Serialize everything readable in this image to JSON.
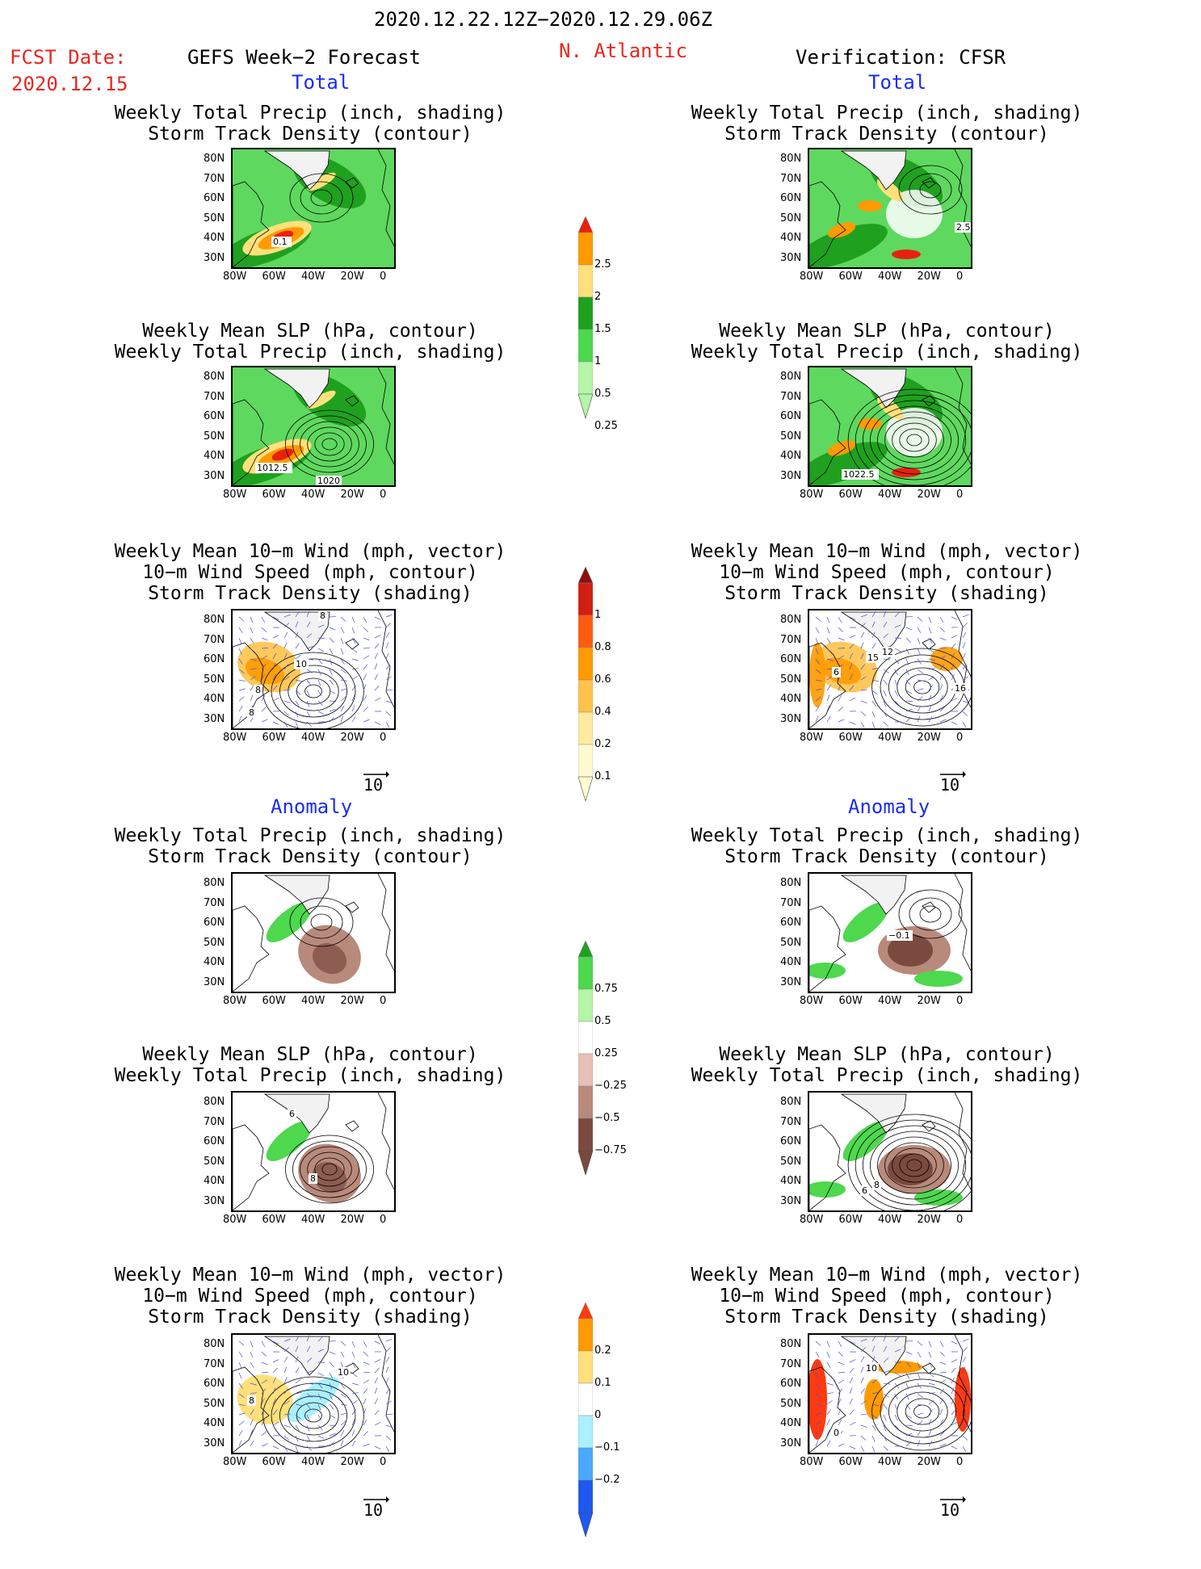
{
  "header": {
    "date_range": "2020.12.22.12Z−2020.12.29.06Z",
    "fcst_label": "FCST Date:",
    "fcst_date": "2020.12.15",
    "left_title": "GEFS Week−2 Forecast",
    "region": "N. Atlantic",
    "right_title": "Verification: CFSR"
  },
  "sections": {
    "total": "Total",
    "anomaly": "Anomaly"
  },
  "panel_titles": {
    "precip_track": [
      "Weekly Total Precip (inch, shading)",
      "Storm Track Density (contour)"
    ],
    "slp_precip": [
      "Weekly Mean SLP (hPa, contour)",
      "Weekly Total Precip (inch, shading)"
    ],
    "wind_track": [
      "Weekly Mean 10−m Wind (mph, vector)",
      "10−m Wind Speed (mph, contour)",
      "Storm Track Density (shading)"
    ]
  },
  "axes": {
    "lat_labels": [
      "80N",
      "70N",
      "60N",
      "50N",
      "40N",
      "30N"
    ],
    "lon_labels": [
      "80W",
      "60W",
      "40W",
      "20W",
      "0"
    ]
  },
  "contour_labels": {
    "fcst_total_precip": "0.1",
    "fcst_total_slp": [
      "1012.5",
      "1020"
    ],
    "fcst_total_wind": [
      "10",
      "8",
      "8",
      "8"
    ],
    "ver_total_precip": "2.5",
    "ver_total_slp": "1022.5",
    "ver_total_wind": [
      "12",
      "15",
      "6",
      "16"
    ],
    "fcst_anom_slp": [
      "6",
      "8"
    ],
    "ver_anom_precip": "−0.1",
    "ver_anom_slp": [
      "6",
      "8"
    ],
    "fcst_anom_wind": [
      "10",
      "8"
    ],
    "ver_anom_wind": [
      "10",
      "0"
    ]
  },
  "vector_ref": "10",
  "colorbars": {
    "precip_total": {
      "labels": [
        "2.5",
        "2",
        "1.5",
        "1",
        "0.5",
        "0.25"
      ],
      "colors": [
        "#e8210f",
        "#ff9a00",
        "#ffe07a",
        "#1fa01f",
        "#4ed84e",
        "#b4f5a8"
      ]
    },
    "track_total": {
      "labels": [
        "1",
        "0.8",
        "0.6",
        "0.4",
        "0.2",
        "0.1"
      ],
      "colors": [
        "#8a0f0f",
        "#d11f12",
        "#ff5a10",
        "#ff9a00",
        "#ffc24a",
        "#ffeaa0",
        "#fffbd0"
      ]
    },
    "precip_anom": {
      "labels": [
        "0.75",
        "0.5",
        "0.25",
        "−0.25",
        "−0.5",
        "−0.75"
      ],
      "colors": [
        "#1fa01f",
        "#4ed84e",
        "#b4f5a8",
        "#ffffff",
        "#e6c0b4",
        "#b88a7c",
        "#7a4a3e"
      ]
    },
    "track_anom": {
      "labels": [
        "0.2",
        "0.1",
        "0",
        "−0.1",
        "−0.2"
      ],
      "colors": [
        "#ff3a10",
        "#ff9a00",
        "#ffe07a",
        "#ffffff",
        "#aaf0ff",
        "#4aa8ff",
        "#1f58f0"
      ]
    }
  }
}
